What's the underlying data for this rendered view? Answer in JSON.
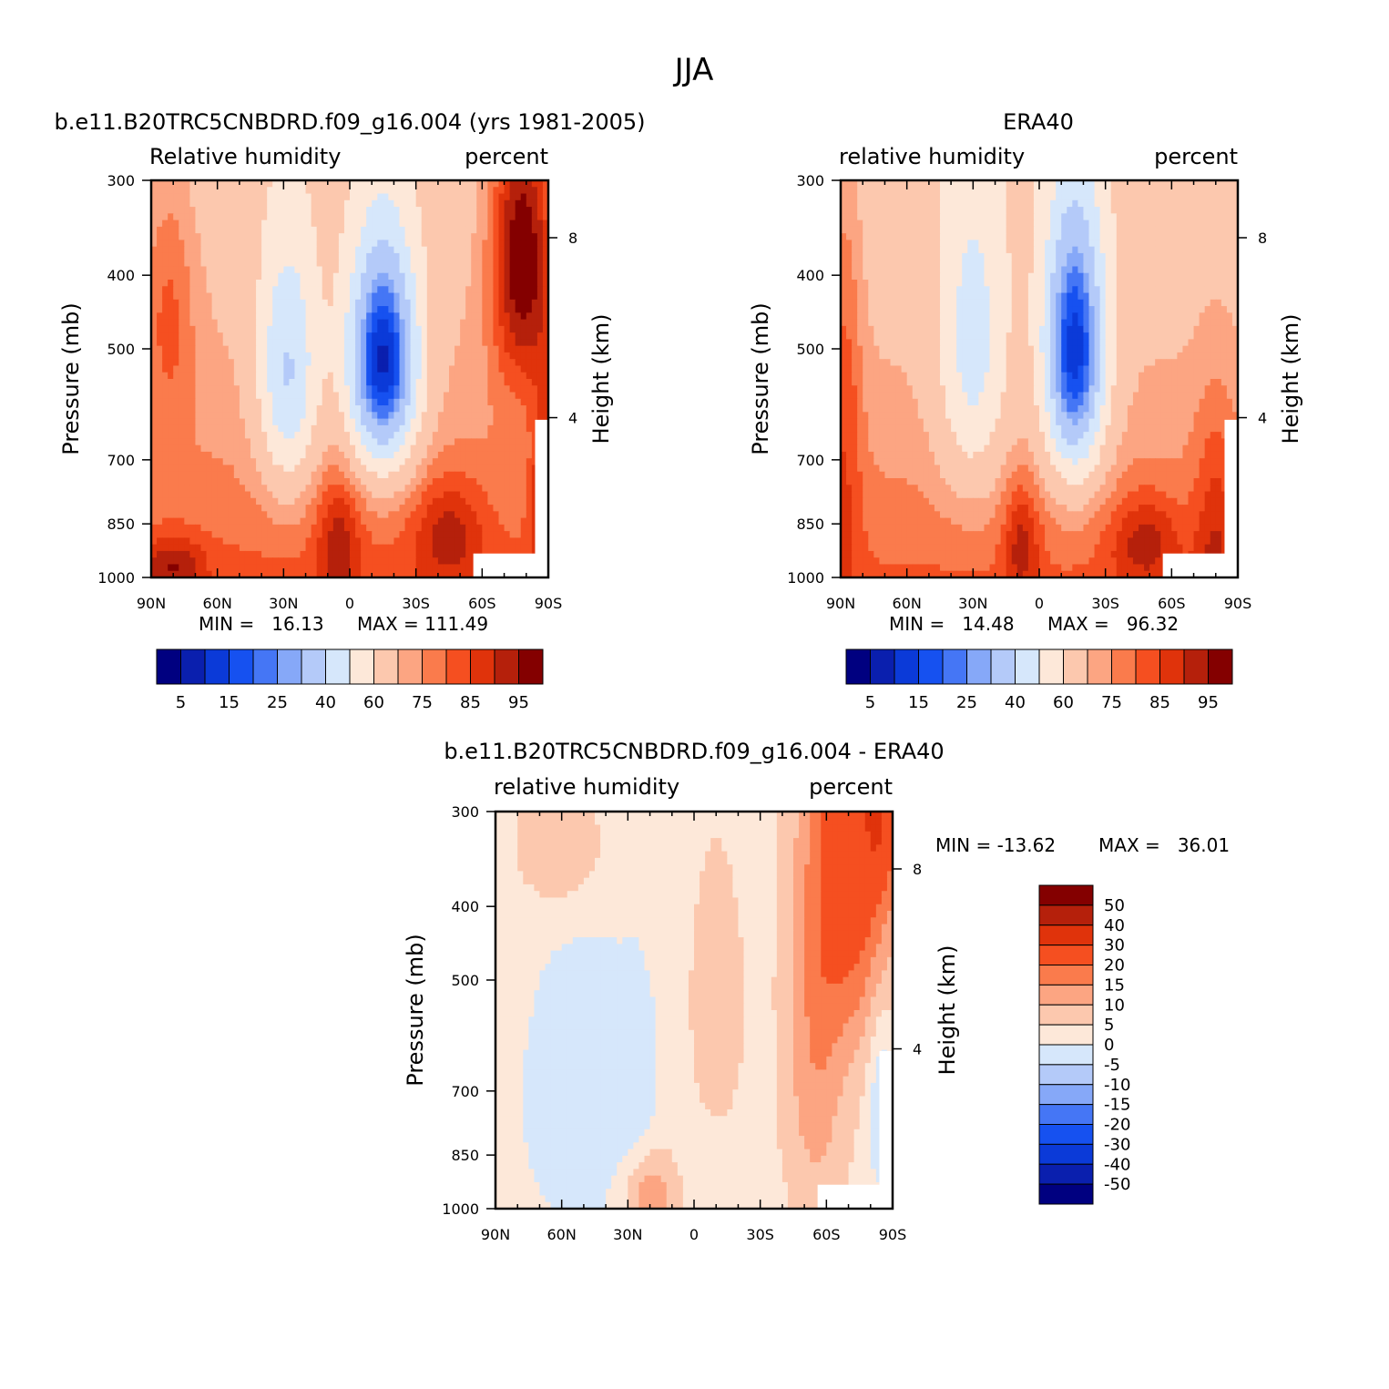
{
  "figure": {
    "main_title": "JJA"
  },
  "chart_data": [
    {
      "type": "heatmap",
      "panel": "model",
      "title": "b.e11.B20TRC5CNBDRD.f09_g16.004 (yrs 1981-2005)",
      "left_string": "Relative humidity",
      "right_string": "percent",
      "xlabel": "",
      "ylabel": "Pressure (mb)",
      "right_ylabel": "Height (km)",
      "x_ticks": [
        "90N",
        "60N",
        "30N",
        "0",
        "30S",
        "60S",
        "90S"
      ],
      "x_range": [
        -90,
        90
      ],
      "y_ticks": [
        "300",
        "400",
        "500",
        "700",
        "850",
        "1000"
      ],
      "y_range": [
        300,
        1000
      ],
      "y_scale": "log",
      "height_ticks": [
        "8",
        "4"
      ],
      "min_label": "MIN =   16.13",
      "max_label": "MAX = 111.49",
      "min": 16.13,
      "max": 111.49,
      "colorbar_labels": [
        "5",
        "15",
        "25",
        "40",
        "60",
        "75",
        "85",
        "95"
      ],
      "levels": [
        5,
        10,
        15,
        20,
        25,
        30,
        40,
        50,
        60,
        70,
        75,
        80,
        85,
        90,
        95
      ]
    },
    {
      "type": "heatmap",
      "panel": "obs",
      "title": "ERA40",
      "left_string": "relative humidity",
      "right_string": "percent",
      "xlabel": "",
      "ylabel": "Pressure (mb)",
      "right_ylabel": "Height (km)",
      "x_ticks": [
        "90N",
        "60N",
        "30N",
        "0",
        "30S",
        "60S",
        "90S"
      ],
      "x_range": [
        -90,
        90
      ],
      "y_ticks": [
        "300",
        "400",
        "500",
        "700",
        "850",
        "1000"
      ],
      "y_range": [
        300,
        1000
      ],
      "y_scale": "log",
      "height_ticks": [
        "8",
        "4"
      ],
      "min_label": "MIN =   14.48",
      "max_label": "MAX =   96.32",
      "min": 14.48,
      "max": 96.32,
      "colorbar_labels": [
        "5",
        "15",
        "25",
        "40",
        "60",
        "75",
        "85",
        "95"
      ],
      "levels": [
        5,
        10,
        15,
        20,
        25,
        30,
        40,
        50,
        60,
        70,
        75,
        80,
        85,
        90,
        95
      ]
    },
    {
      "type": "heatmap",
      "panel": "difference",
      "title": "b.e11.B20TRC5CNBDRD.f09_g16.004 - ERA40",
      "left_string": "relative humidity",
      "right_string": "percent",
      "xlabel": "",
      "ylabel": "Pressure (mb)",
      "right_ylabel": "Height (km)",
      "x_ticks": [
        "90N",
        "60N",
        "30N",
        "0",
        "30S",
        "60S",
        "90S"
      ],
      "x_range": [
        -90,
        90
      ],
      "y_ticks": [
        "300",
        "400",
        "500",
        "700",
        "850",
        "1000"
      ],
      "y_range": [
        300,
        1000
      ],
      "y_scale": "log",
      "height_ticks": [
        "8",
        "4"
      ],
      "min_label": "MIN = -13.62",
      "max_label": "MAX =   36.01",
      "min": -13.62,
      "max": 36.01,
      "colorbar_labels": [
        "50",
        "40",
        "30",
        "20",
        "15",
        "10",
        "5",
        "0",
        "-5",
        "-10",
        "-15",
        "-20",
        "-30",
        "-40",
        "-50"
      ],
      "levels": [
        -50,
        -40,
        -30,
        -20,
        -15,
        -10,
        -5,
        0,
        5,
        10,
        15,
        20,
        30,
        40,
        50
      ]
    }
  ],
  "palettes": {
    "absolute": [
      "#000080",
      "#0a1fae",
      "#0b3ad8",
      "#1651f0",
      "#4576f5",
      "#86a8f8",
      "#b4caf9",
      "#d6e7fb",
      "#fde8d9",
      "#fcc8ae",
      "#fca582",
      "#fa7b4c",
      "#f54f20",
      "#e0330b",
      "#b5200b",
      "#840000"
    ],
    "difference": [
      "#000080",
      "#0a1fae",
      "#0b3ad8",
      "#1651f0",
      "#4576f5",
      "#86a8f8",
      "#b4caf9",
      "#d6e7fb",
      "#fde8d9",
      "#fcc8ae",
      "#fca582",
      "#fa7b4c",
      "#f54f20",
      "#e0330b",
      "#b5200b",
      "#840000"
    ]
  }
}
